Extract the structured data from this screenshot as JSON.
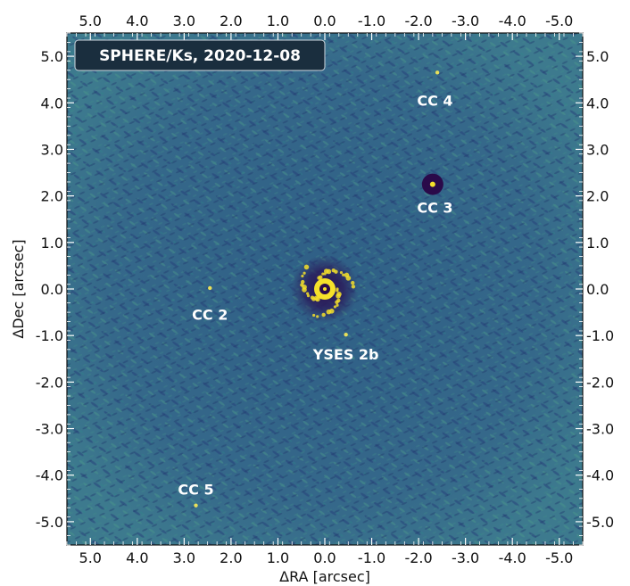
{
  "figure": {
    "title": "SPHERE/Ks, 2020-12-08",
    "xlabel": "ΔRA [arcsec]",
    "ylabel": "ΔDec [arcsec]",
    "x_ticks": [
      "5.0",
      "4.0",
      "3.0",
      "2.0",
      "1.0",
      "0.0",
      "-1.0",
      "-2.0",
      "-3.0",
      "-4.0",
      "-5.0"
    ],
    "y_ticks": [
      "5.0",
      "4.0",
      "3.0",
      "2.0",
      "1.0",
      "0.0",
      "-1.0",
      "-2.0",
      "-3.0",
      "-4.0",
      "-5.0"
    ],
    "x_tick_values": [
      5,
      4,
      3,
      2,
      1,
      0,
      -1,
      -2,
      -3,
      -4,
      -5
    ],
    "y_tick_values": [
      5,
      4,
      3,
      2,
      1,
      0,
      -1,
      -2,
      -3,
      -4,
      -5
    ],
    "x_range": [
      5.5,
      -5.5
    ],
    "y_range": [
      -5.5,
      5.5
    ],
    "colors": {
      "background": "#3a6e8a",
      "speckle": "#35507a",
      "bright": "#f5e12a",
      "dark": "#2a0a4a",
      "title_box": "#1a2e3e"
    },
    "annotations": [
      {
        "label": "CC 4",
        "ra": -2.35,
        "dec": 4.05
      },
      {
        "label": "CC 3",
        "ra": -2.35,
        "dec": 1.75
      },
      {
        "label": "CC 2",
        "ra": 2.45,
        "dec": -0.55
      },
      {
        "label": "YSES 2b",
        "ra": -0.45,
        "dec": -1.4
      },
      {
        "label": "CC 5",
        "ra": 2.75,
        "dec": -4.3
      }
    ],
    "sources": [
      {
        "name": "star",
        "ra": 0.0,
        "dec": 0.0
      },
      {
        "name": "CC 4",
        "ra": -2.4,
        "dec": 4.65
      },
      {
        "name": "CC 3",
        "ra": -2.3,
        "dec": 2.25
      },
      {
        "name": "CC 2",
        "ra": 2.45,
        "dec": 0.02
      },
      {
        "name": "YSES 2b",
        "ra": -0.45,
        "dec": -0.98
      },
      {
        "name": "CC 5",
        "ra": 2.75,
        "dec": -4.65
      }
    ]
  }
}
